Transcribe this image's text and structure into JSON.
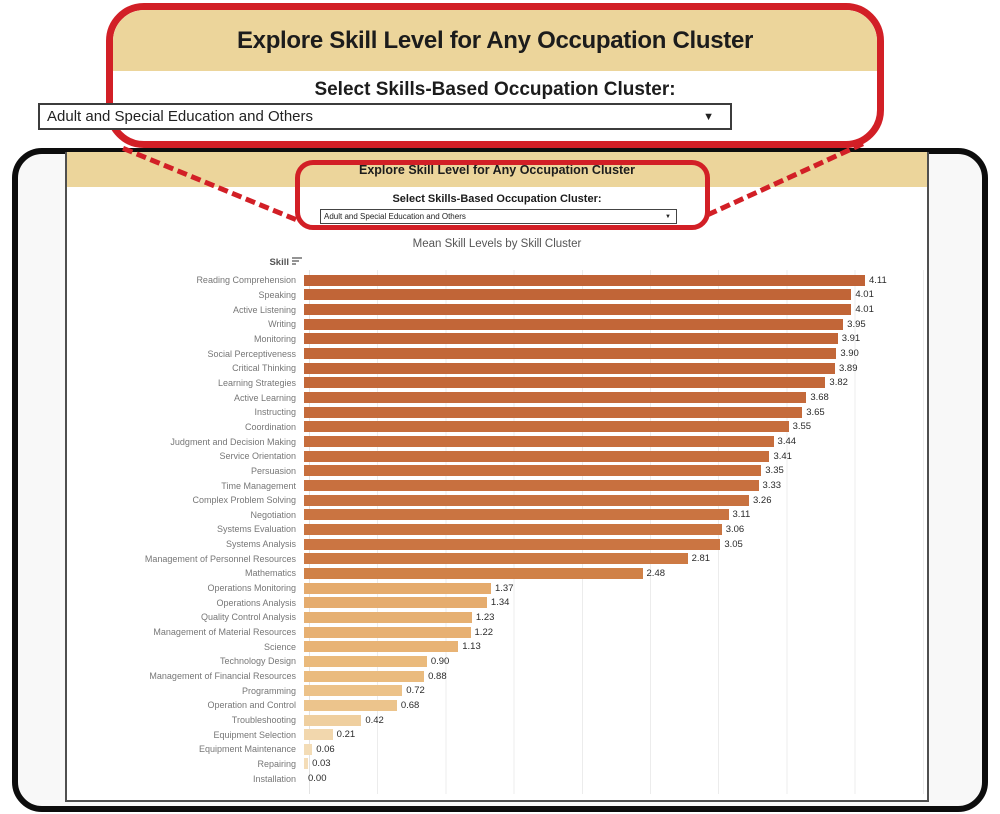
{
  "callout": {
    "title": "Explore Skill Level for Any Occupation Cluster",
    "select_label": "Select Skills-Based Occupation Cluster:",
    "dropdown_value": "Adult and Special Education and Others",
    "dropdown_arrow": "▼"
  },
  "dashboard": {
    "header_title": "Explore Skill Level for Any Occupation Cluster",
    "select_label": "Select Skills-Based Occupation Cluster:",
    "dropdown_value": "Adult and Special Education and Others",
    "dropdown_arrow": "▼",
    "chart_title": "Mean Skill Levels by Skill Cluster",
    "column_header": "Skill"
  },
  "colors": {
    "highlight_red": "#d21f26",
    "header_tan": "#ecd59b",
    "bar_high": "#c06336",
    "bar_low": "#f4deba"
  },
  "chart_data": {
    "type": "bar",
    "orientation": "horizontal",
    "title": "Mean Skill Levels by Skill Cluster",
    "column_header": "Skill",
    "xlabel": "",
    "ylabel": "Skill",
    "xlim": [
      0,
      4.5
    ],
    "gridline_interval": 0.5,
    "grid": true,
    "legend": false,
    "rows": [
      {
        "label": "Reading Comprehension",
        "value": 4.11,
        "color": "#c06336"
      },
      {
        "label": "Speaking",
        "value": 4.01,
        "color": "#c16537"
      },
      {
        "label": "Active Listening",
        "value": 4.01,
        "color": "#c16537"
      },
      {
        "label": "Writing",
        "value": 3.95,
        "color": "#c26638"
      },
      {
        "label": "Monitoring",
        "value": 3.91,
        "color": "#c26638"
      },
      {
        "label": "Social Perceptiveness",
        "value": 3.9,
        "color": "#c26738"
      },
      {
        "label": "Critical Thinking",
        "value": 3.89,
        "color": "#c26739"
      },
      {
        "label": "Learning Strategies",
        "value": 3.82,
        "color": "#c36839"
      },
      {
        "label": "Active Learning",
        "value": 3.68,
        "color": "#c46a3b"
      },
      {
        "label": "Instructing",
        "value": 3.65,
        "color": "#c56b3b"
      },
      {
        "label": "Coordination",
        "value": 3.55,
        "color": "#c66d3c"
      },
      {
        "label": "Judgment and Decision Making",
        "value": 3.44,
        "color": "#c76e3d"
      },
      {
        "label": "Service Orientation",
        "value": 3.41,
        "color": "#c76f3e"
      },
      {
        "label": "Persuasion",
        "value": 3.35,
        "color": "#c8703e"
      },
      {
        "label": "Time Management",
        "value": 3.33,
        "color": "#c8703f"
      },
      {
        "label": "Complex Problem Solving",
        "value": 3.26,
        "color": "#c87240"
      },
      {
        "label": "Negotiation",
        "value": 3.11,
        "color": "#ca7441"
      },
      {
        "label": "Systems Evaluation",
        "value": 3.06,
        "color": "#ca7541"
      },
      {
        "label": "Systems Analysis",
        "value": 3.05,
        "color": "#cb7542"
      },
      {
        "label": "Management of Personnel Resources",
        "value": 2.81,
        "color": "#cd7a44"
      },
      {
        "label": "Mathematics",
        "value": 2.48,
        "color": "#d08147"
      },
      {
        "label": "Operations Monitoring",
        "value": 1.37,
        "color": "#e5ab6d"
      },
      {
        "label": "Operations Analysis",
        "value": 1.34,
        "color": "#e5ac6e"
      },
      {
        "label": "Quality Control Analysis",
        "value": 1.23,
        "color": "#e6b072"
      },
      {
        "label": "Management of Material Resources",
        "value": 1.22,
        "color": "#e7b072"
      },
      {
        "label": "Science",
        "value": 1.13,
        "color": "#e8b375"
      },
      {
        "label": "Technology Design",
        "value": 0.9,
        "color": "#eaba7c"
      },
      {
        "label": "Management of Financial Resources",
        "value": 0.88,
        "color": "#eabb7e"
      },
      {
        "label": "Programming",
        "value": 0.72,
        "color": "#ecc289"
      },
      {
        "label": "Operation and Control",
        "value": 0.68,
        "color": "#ecc48c"
      },
      {
        "label": "Troubleshooting",
        "value": 0.42,
        "color": "#efcf9f"
      },
      {
        "label": "Equipment Selection",
        "value": 0.21,
        "color": "#f2d7ad"
      },
      {
        "label": "Equipment Maintenance",
        "value": 0.06,
        "color": "#f3dcb6"
      },
      {
        "label": "Repairing",
        "value": 0.03,
        "color": "#f4ddb8"
      },
      {
        "label": "Installation",
        "value": 0.0,
        "color": "#f4deba"
      }
    ]
  }
}
